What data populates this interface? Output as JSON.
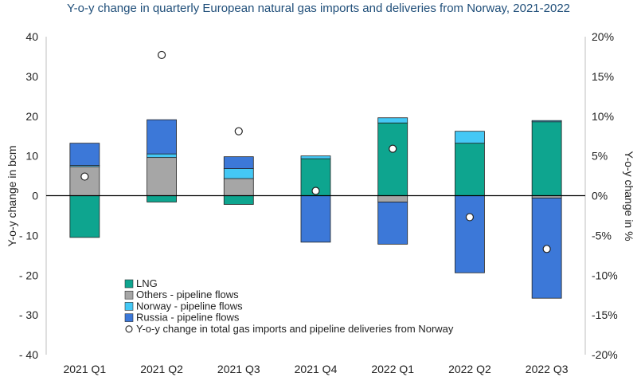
{
  "chart_data": {
    "type": "bar",
    "stacked": true,
    "title": "Y-o-y change in quarterly European natural gas imports and deliveries from Norway, 2021-2022",
    "ylabel_left": "Y-o-y change in bcm",
    "ylabel_right": "Y-o-y change in %",
    "ylim_left": [
      -40,
      40
    ],
    "ylim_right": [
      -20,
      20
    ],
    "yticks_left": [
      "40",
      "30",
      "20",
      "10",
      "0",
      "- 10",
      "- 20",
      "- 30",
      "- 40"
    ],
    "yticks_right": [
      "20%",
      "15%",
      "10%",
      "5%",
      "0%",
      "-5%",
      "-10%",
      "-15%",
      "-20%"
    ],
    "categories": [
      "2021 Q1",
      "2021 Q2",
      "2021 Q3",
      "2021 Q4",
      "2022 Q1",
      "2022 Q2",
      "2022 Q3"
    ],
    "series": [
      {
        "name": "LNG",
        "color": "#0ea58f",
        "values": [
          -10.5,
          -1.6,
          -2.2,
          9.3,
          18.3,
          13.2,
          18.6
        ]
      },
      {
        "name": "Others - pipeline flows",
        "color": "#a6a6a6",
        "values": [
          7.3,
          9.6,
          4.3,
          0,
          -1.6,
          0,
          -0.6
        ]
      },
      {
        "name": "Norway - pipeline flows",
        "color": "#44c8f5",
        "values": [
          0.3,
          0.9,
          2.5,
          0.7,
          1.3,
          3.0,
          0.3
        ]
      },
      {
        "name": "Russia - pipeline flows",
        "color": "#3c78d8",
        "values": [
          5.6,
          8.6,
          3.0,
          -11.7,
          -10.6,
          -19.4,
          -25.2
        ]
      }
    ],
    "markers": {
      "name": "Y-o-y change in total gas imports and pipeline deliveries from Norway",
      "axis": "right",
      "values": [
        2.4,
        17.7,
        8.1,
        0.6,
        5.9,
        -2.7,
        -6.7
      ]
    },
    "legend_position": "bottom-left",
    "grid": false
  }
}
